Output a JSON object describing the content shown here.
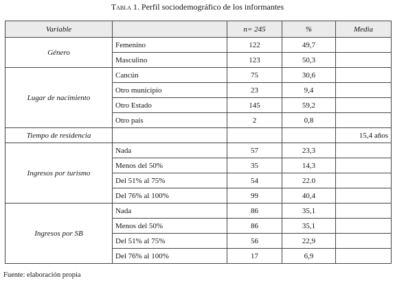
{
  "header": {
    "title": "Tabla 1.",
    "subtitle": "Perfil sociodemográfico de los informantes"
  },
  "table": {
    "columns": [
      "Variable",
      "n= 245",
      "%",
      "Media"
    ],
    "groups": [
      {
        "variable": "Género",
        "rows": [
          {
            "label": "Femenino",
            "n": "122",
            "pct": "49,7"
          },
          {
            "label": "Masculino",
            "n": "123",
            "pct": "50,3"
          }
        ]
      },
      {
        "variable": "Lugar de nacimiento",
        "rows": [
          {
            "label": "Cancún",
            "n": "75",
            "pct": "30,6"
          },
          {
            "label": "Otro municipio",
            "n": "23",
            "pct": "9,4"
          },
          {
            "label": "Otro Estado",
            "n": "145",
            "pct": "59,2"
          },
          {
            "label": "Otro país",
            "n": "2",
            "pct": "0,8"
          }
        ]
      },
      {
        "variable": "Tiempo de residencia",
        "rows": [
          {
            "media": "15,4 años"
          }
        ]
      },
      {
        "variable": "Ingresos por turismo",
        "rows": [
          {
            "label": "Nada",
            "n": "57",
            "pct": "23,3"
          },
          {
            "label": "Menos del 50%",
            "n": "35",
            "pct": "14,3"
          },
          {
            "label": "Del 51% al 75%",
            "n": "54",
            "pct": "22.0"
          },
          {
            "label": "Del 76% al 100%",
            "n": "99",
            "pct": "40,4"
          }
        ]
      },
      {
        "variable": "Ingresos por SB",
        "rows": [
          {
            "label": "Nada",
            "n": "86",
            "pct": "35,1"
          },
          {
            "label": "Menos del 50%",
            "n": "86",
            "pct": "35,1"
          },
          {
            "label": "Del 51% al 75%",
            "n": "56",
            "pct": "22,9"
          },
          {
            "label": "Del 76% al 100%",
            "n": "17",
            "pct": "6,9"
          }
        ]
      }
    ]
  },
  "footer": {
    "note": "Fuente: elaboración propia"
  }
}
